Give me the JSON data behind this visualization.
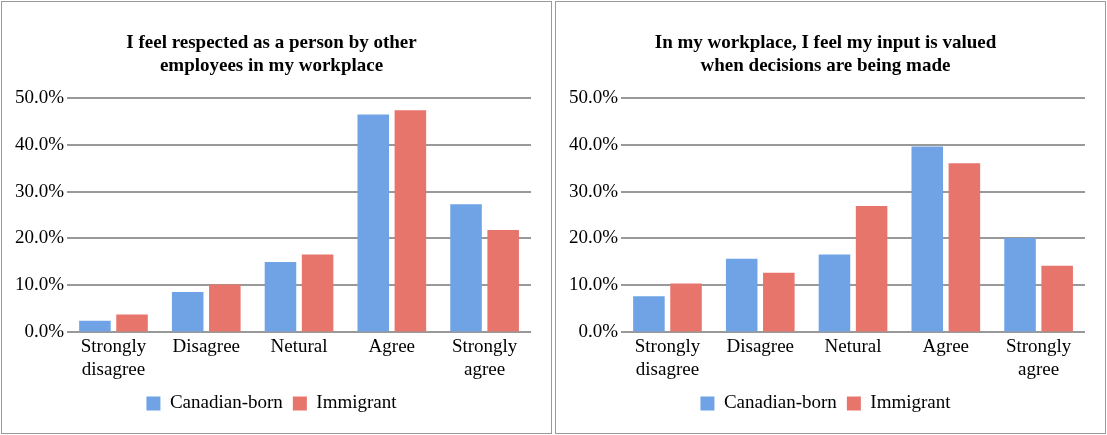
{
  "chart_data": [
    {
      "type": "bar",
      "title": "I feel respected as a person by other employees in my workplace",
      "categories": [
        "Strongly disagree",
        "Disagree",
        "Netural",
        "Agree",
        "Strongly agree"
      ],
      "series": [
        {
          "name": "Canadian-born",
          "color": "#6fa3e6",
          "values": [
            2.5,
            8.6,
            15.0,
            46.4,
            27.3
          ]
        },
        {
          "name": "Immigrant",
          "color": "#e8756c",
          "values": [
            3.8,
            10.2,
            16.6,
            47.3,
            21.8
          ]
        }
      ],
      "ylim": [
        0,
        50
      ],
      "yticks": [
        {
          "value": 0,
          "label": "0.0%"
        },
        {
          "value": 10,
          "label": "10.0%"
        },
        {
          "value": 20,
          "label": "20.0%"
        },
        {
          "value": 30,
          "label": "30.0%"
        },
        {
          "value": 40,
          "label": "40.0%"
        },
        {
          "value": 50,
          "label": "50.0%"
        }
      ],
      "grid": "y",
      "legend": "bottom"
    },
    {
      "type": "bar",
      "title": "In my workplace, I feel my input is valued when decisions are being made",
      "categories": [
        "Strongly disagree",
        "Disagree",
        "Netural",
        "Agree",
        "Strongly agree"
      ],
      "series": [
        {
          "name": "Canadian-born",
          "color": "#6fa3e6",
          "values": [
            7.7,
            15.7,
            16.6,
            39.6,
            20.1
          ]
        },
        {
          "name": "Immigrant",
          "color": "#e8756c",
          "values": [
            10.4,
            12.7,
            26.9,
            36.0,
            14.2
          ]
        }
      ],
      "ylim": [
        0,
        50
      ],
      "yticks": [
        {
          "value": 0,
          "label": "0.0%"
        },
        {
          "value": 10,
          "label": "10.0%"
        },
        {
          "value": 20,
          "label": "20.0%"
        },
        {
          "value": 30,
          "label": "30.0%"
        },
        {
          "value": 40,
          "label": "40.0%"
        },
        {
          "value": 50,
          "label": "50.0%"
        }
      ],
      "grid": "y",
      "legend": "bottom"
    }
  ]
}
